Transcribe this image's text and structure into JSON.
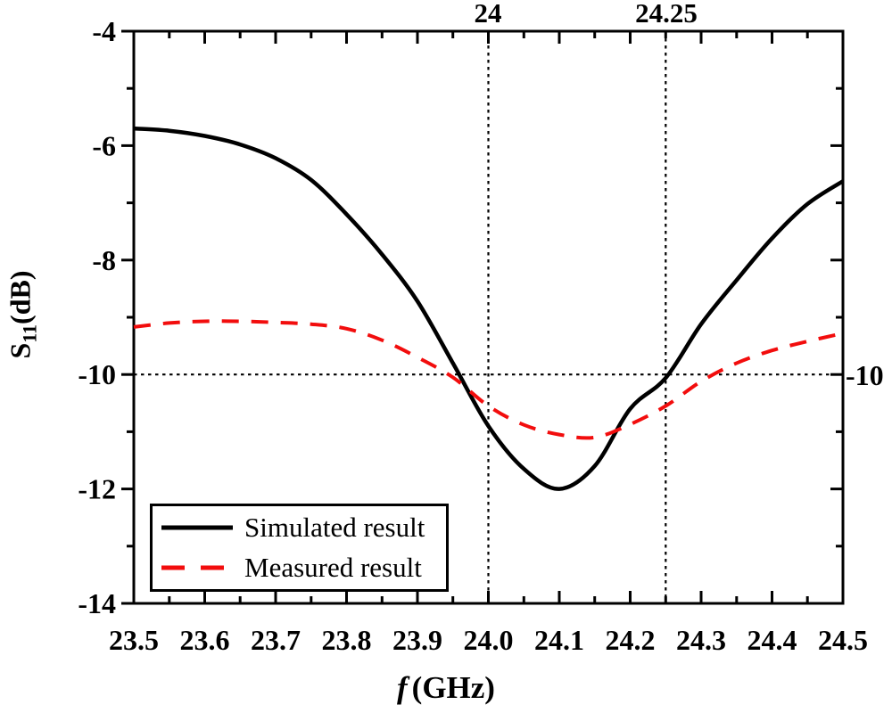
{
  "figure": {
    "background": "#ffffff",
    "y_axis_title": {
      "prefix": "S",
      "sub": "11",
      "suffix": "(dB)"
    },
    "x_axis_title": {
      "italic": "f",
      "rest": "(GHz)"
    }
  },
  "chart_data": {
    "type": "line",
    "title": "",
    "xlabel": "f (GHz)",
    "ylabel": "S11 (dB)",
    "xlim": [
      23.5,
      24.5
    ],
    "ylim": [
      -14,
      -4
    ],
    "grid": false,
    "legend_position": "bottom-left",
    "axis_color": "#000000",
    "x_minor_step": 0.05,
    "y_minor_step": 1,
    "x_ticks": [
      {
        "v": 23.5,
        "label": "23.5"
      },
      {
        "v": 23.6,
        "label": "23.6"
      },
      {
        "v": 23.7,
        "label": "23.7"
      },
      {
        "v": 23.8,
        "label": "23.8"
      },
      {
        "v": 23.9,
        "label": "23.9"
      },
      {
        "v": 24.0,
        "label": "24.0"
      },
      {
        "v": 24.1,
        "label": "24.1"
      },
      {
        "v": 24.2,
        "label": "24.2"
      },
      {
        "v": 24.3,
        "label": "24.3"
      },
      {
        "v": 24.4,
        "label": "24.4"
      },
      {
        "v": 24.5,
        "label": "24.5"
      }
    ],
    "y_ticks": [
      {
        "v": -4,
        "label": "-4"
      },
      {
        "v": -6,
        "label": "-6"
      },
      {
        "v": -8,
        "label": "-8"
      },
      {
        "v": -10,
        "label": "-10"
      },
      {
        "v": -12,
        "label": "-12"
      },
      {
        "v": -14,
        "label": "-14"
      }
    ],
    "top_axis_ticks": [
      {
        "v": 24,
        "label": "24"
      },
      {
        "v": 24.25,
        "label": "24.25"
      }
    ],
    "right_axis_ticks": [
      {
        "v": -10,
        "label": "-10"
      }
    ],
    "reference_lines": {
      "vertical_x": [
        24,
        24.25
      ],
      "horizontal_y": [
        -10
      ],
      "color": "#000000",
      "style": "dotted"
    },
    "x": [
      23.5,
      23.55,
      23.6,
      23.65,
      23.7,
      23.75,
      23.8,
      23.85,
      23.9,
      23.95,
      24.0,
      24.05,
      24.1,
      24.15,
      24.2,
      24.25,
      24.3,
      24.35,
      24.4,
      24.45,
      24.5
    ],
    "series": [
      {
        "name": "Simulated result",
        "color": "#000000",
        "style": "solid",
        "values": [
          -5.7,
          -5.74,
          -5.83,
          -5.98,
          -6.22,
          -6.6,
          -7.2,
          -7.9,
          -8.72,
          -9.8,
          -10.9,
          -11.65,
          -12.0,
          -11.6,
          -10.6,
          -10.06,
          -9.12,
          -8.35,
          -7.62,
          -7.02,
          -6.62
        ]
      },
      {
        "name": "Measured result",
        "color": "#f20d0d",
        "style": "dashed",
        "values": [
          -9.17,
          -9.1,
          -9.07,
          -9.07,
          -9.09,
          -9.12,
          -9.2,
          -9.4,
          -9.7,
          -10.05,
          -10.55,
          -10.88,
          -11.05,
          -11.1,
          -10.87,
          -10.55,
          -10.12,
          -9.8,
          -9.58,
          -9.42,
          -9.28
        ]
      }
    ]
  }
}
